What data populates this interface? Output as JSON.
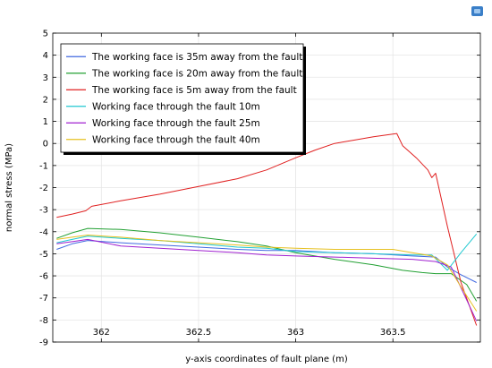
{
  "chart_data": {
    "type": "line",
    "xlabel": "y-axis coordinates of fault plane (m)",
    "ylabel": "normal stress (MPa)",
    "xlim": [
      361.75,
      363.95
    ],
    "ylim": [
      -9,
      5
    ],
    "x_ticks": [
      362,
      362.5,
      363,
      363.5
    ],
    "x_tick_labels": [
      "362",
      "362.5",
      "363",
      "363.5"
    ],
    "y_ticks": [
      -9,
      -8,
      -7,
      -6,
      -5,
      -4,
      -3,
      -2,
      -1,
      0,
      1,
      2,
      3,
      4,
      5
    ],
    "grid": true,
    "legend_position": "top-left",
    "series": [
      {
        "name": "The working face is 35m away from the fault",
        "color": "#4169e1",
        "x": [
          361.77,
          361.85,
          361.93,
          362.1,
          362.3,
          362.5,
          362.7,
          362.85,
          363.0,
          363.2,
          363.4,
          363.6,
          363.72,
          363.78,
          363.85,
          363.93
        ],
        "y": [
          -4.8,
          -4.55,
          -4.4,
          -4.5,
          -4.6,
          -4.7,
          -4.8,
          -4.85,
          -4.85,
          -4.95,
          -5.0,
          -5.1,
          -5.15,
          -5.6,
          -5.95,
          -6.3
        ]
      },
      {
        "name": "The working face is 20m away from the fault",
        "color": "#22a033",
        "x": [
          361.77,
          361.85,
          361.93,
          362.1,
          362.3,
          362.5,
          362.7,
          362.85,
          363.0,
          363.2,
          363.4,
          363.55,
          363.65,
          363.72,
          363.8,
          363.88,
          363.93
        ],
        "y": [
          -4.3,
          -4.05,
          -3.85,
          -3.9,
          -4.05,
          -4.25,
          -4.45,
          -4.65,
          -4.95,
          -5.25,
          -5.5,
          -5.75,
          -5.85,
          -5.9,
          -5.9,
          -6.4,
          -7.15
        ]
      },
      {
        "name": "The working face is 5m away from the fault",
        "color": "#e02020",
        "x": [
          361.77,
          361.85,
          361.92,
          361.95,
          362.1,
          362.3,
          362.5,
          362.7,
          362.85,
          363.0,
          363.1,
          363.2,
          363.3,
          363.4,
          363.52,
          363.55,
          363.62,
          363.68,
          363.7,
          363.72,
          363.78,
          363.85,
          363.93
        ],
        "y": [
          -3.35,
          -3.2,
          -3.05,
          -2.85,
          -2.6,
          -2.3,
          -1.95,
          -1.6,
          -1.2,
          -0.65,
          -0.3,
          0.0,
          0.15,
          0.3,
          0.45,
          -0.1,
          -0.65,
          -1.2,
          -1.55,
          -1.35,
          -3.75,
          -6.3,
          -8.25
        ]
      },
      {
        "name": "Working face through the fault 10m",
        "color": "#20c8d0",
        "x": [
          361.77,
          361.85,
          361.93,
          362.1,
          362.3,
          362.5,
          362.7,
          362.85,
          363.0,
          363.2,
          363.4,
          363.6,
          363.7,
          363.78,
          363.85,
          363.93
        ],
        "y": [
          -4.5,
          -4.35,
          -4.2,
          -4.3,
          -4.4,
          -4.55,
          -4.7,
          -4.75,
          -4.9,
          -4.95,
          -5.0,
          -5.05,
          -5.05,
          -5.75,
          -4.95,
          -4.1
        ]
      },
      {
        "name": "Working face through the fault 25m",
        "color": "#a020d0",
        "x": [
          361.77,
          361.85,
          361.93,
          362.1,
          362.3,
          362.5,
          362.7,
          362.85,
          363.0,
          363.2,
          363.4,
          363.6,
          363.72,
          363.8,
          363.88,
          363.93
        ],
        "y": [
          -4.55,
          -4.45,
          -4.35,
          -4.65,
          -4.75,
          -4.85,
          -4.95,
          -5.05,
          -5.1,
          -5.15,
          -5.2,
          -5.25,
          -5.35,
          -5.6,
          -7.1,
          -8.05
        ]
      },
      {
        "name": "Working face through the fault 40m",
        "color": "#e6c020",
        "x": [
          361.77,
          361.85,
          361.93,
          362.1,
          362.3,
          362.5,
          362.7,
          362.85,
          363.0,
          363.2,
          363.4,
          363.5,
          363.6,
          363.7,
          363.78,
          363.85,
          363.93
        ],
        "y": [
          -4.35,
          -4.25,
          -4.15,
          -4.25,
          -4.4,
          -4.5,
          -4.6,
          -4.7,
          -4.75,
          -4.8,
          -4.8,
          -4.8,
          -4.95,
          -5.1,
          -5.5,
          -6.5,
          -7.6
        ]
      }
    ]
  }
}
